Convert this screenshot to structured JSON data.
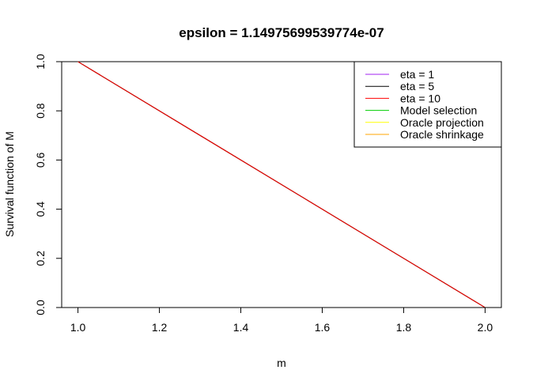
{
  "chart_data": {
    "type": "line",
    "title": "epsilon = 1.14975699539774e-07",
    "xlabel": "m",
    "ylabel": "Survival function of M",
    "xlim": [
      0.96,
      2.04
    ],
    "ylim": [
      0.0,
      1.0
    ],
    "xticks": [
      1.0,
      1.2,
      1.4,
      1.6,
      1.8,
      2.0
    ],
    "xtick_labels": [
      "1.0",
      "1.2",
      "1.4",
      "1.6",
      "1.8",
      "2.0"
    ],
    "yticks": [
      0.0,
      0.2,
      0.4,
      0.6,
      0.8,
      1.0
    ],
    "ytick_labels": [
      "0.0",
      "0.2",
      "0.4",
      "0.6",
      "0.8",
      "1.0"
    ],
    "grid": false,
    "legend_position": "top-right",
    "series": [
      {
        "name": "eta = 1",
        "color": "#a020f0",
        "x": [
          1.0,
          2.0
        ],
        "y": [
          1.0,
          0.0
        ]
      },
      {
        "name": "eta = 5",
        "color": "#000000",
        "x": [
          1.0,
          2.0
        ],
        "y": [
          1.0,
          0.0
        ]
      },
      {
        "name": "eta = 10",
        "color": "#ff0000",
        "x": [
          1.0,
          2.0
        ],
        "y": [
          1.0,
          0.0
        ]
      },
      {
        "name": "Model selection",
        "color": "#00cd00",
        "x": [
          1.0,
          2.0
        ],
        "y": [
          1.0,
          0.0
        ]
      },
      {
        "name": "Oracle projection",
        "color": "#ffff00",
        "x": [
          1.0,
          2.0
        ],
        "y": [
          1.0,
          0.0
        ]
      },
      {
        "name": "Oracle shrinkage",
        "color": "#ffa500",
        "x": [
          1.0,
          2.0
        ],
        "y": [
          1.0,
          0.0
        ]
      }
    ],
    "draw_order": [
      5,
      4,
      3,
      0,
      1,
      2
    ]
  }
}
